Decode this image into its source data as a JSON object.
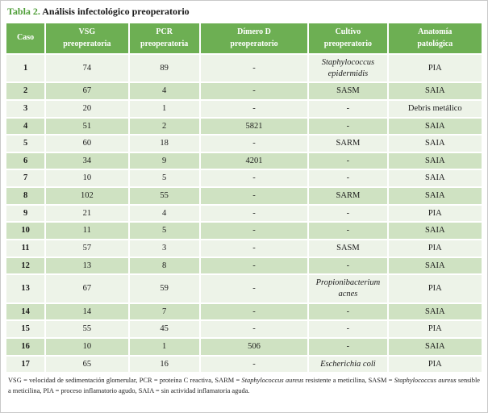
{
  "title": {
    "label": "Tabla 2.",
    "text": " Análisis infectológico preoperatorio"
  },
  "colors": {
    "header_green": "#6DAF53",
    "row_green": "#CFE2C2",
    "row_light": "#EDF3E8",
    "title_green": "#4F9E38",
    "text_dark": "#1C1C1C",
    "frame_gray": "#C9C9C9"
  },
  "table": {
    "columns": [
      {
        "id": "caso",
        "label": "Caso"
      },
      {
        "id": "vsg",
        "label": "VSG\npreoperatoria"
      },
      {
        "id": "pcr",
        "label": "PCR\npreoperatoria"
      },
      {
        "id": "dimero",
        "label": "Dímero D\npreoperatorio"
      },
      {
        "id": "cultivo",
        "label": "Cultivo\npreoperatorio"
      },
      {
        "id": "anatomia",
        "label": "Anatomía\npatológica"
      }
    ],
    "rows": [
      {
        "caso": "1",
        "vsg": "74",
        "pcr": "89",
        "dimero": "-",
        "cultivo": "Staphylococcus\nepidermidis",
        "cultivo_italic": true,
        "anatomia": "PIA"
      },
      {
        "caso": "2",
        "vsg": "67",
        "pcr": "4",
        "dimero": "-",
        "cultivo": "SASM",
        "cultivo_italic": false,
        "anatomia": "SAIA"
      },
      {
        "caso": "3",
        "vsg": "20",
        "pcr": "1",
        "dimero": "-",
        "cultivo": "-",
        "cultivo_italic": false,
        "anatomia": "Debris metálico"
      },
      {
        "caso": "4",
        "vsg": "51",
        "pcr": "2",
        "dimero": "5821",
        "cultivo": "-",
        "cultivo_italic": false,
        "anatomia": "SAIA"
      },
      {
        "caso": "5",
        "vsg": "60",
        "pcr": "18",
        "dimero": "-",
        "cultivo": "SARM",
        "cultivo_italic": false,
        "anatomia": "SAIA"
      },
      {
        "caso": "6",
        "vsg": "34",
        "pcr": "9",
        "dimero": "4201",
        "cultivo": "-",
        "cultivo_italic": false,
        "anatomia": "SAIA"
      },
      {
        "caso": "7",
        "vsg": "10",
        "pcr": "5",
        "dimero": "-",
        "cultivo": "-",
        "cultivo_italic": false,
        "anatomia": "SAIA"
      },
      {
        "caso": "8",
        "vsg": "102",
        "pcr": "55",
        "dimero": "-",
        "cultivo": "SARM",
        "cultivo_italic": false,
        "anatomia": "SAIA"
      },
      {
        "caso": "9",
        "vsg": "21",
        "pcr": "4",
        "dimero": "-",
        "cultivo": "-",
        "cultivo_italic": false,
        "anatomia": "PIA"
      },
      {
        "caso": "10",
        "vsg": "11",
        "pcr": "5",
        "dimero": "-",
        "cultivo": "-",
        "cultivo_italic": false,
        "anatomia": "SAIA"
      },
      {
        "caso": "11",
        "vsg": "57",
        "pcr": "3",
        "dimero": "-",
        "cultivo": "SASM",
        "cultivo_italic": false,
        "anatomia": "PIA"
      },
      {
        "caso": "12",
        "vsg": "13",
        "pcr": "8",
        "dimero": "-",
        "cultivo": "-",
        "cultivo_italic": false,
        "anatomia": "SAIA"
      },
      {
        "caso": "13",
        "vsg": "67",
        "pcr": "59",
        "dimero": "-",
        "cultivo": "Propionibacterium\nacnes",
        "cultivo_italic": true,
        "anatomia": "PIA"
      },
      {
        "caso": "14",
        "vsg": "14",
        "pcr": "7",
        "dimero": "-",
        "cultivo": "-",
        "cultivo_italic": false,
        "anatomia": "SAIA"
      },
      {
        "caso": "15",
        "vsg": "55",
        "pcr": "45",
        "dimero": "-",
        "cultivo": "-",
        "cultivo_italic": false,
        "anatomia": "PIA"
      },
      {
        "caso": "16",
        "vsg": "10",
        "pcr": "1",
        "dimero": "506",
        "cultivo": "-",
        "cultivo_italic": false,
        "anatomia": "SAIA"
      },
      {
        "caso": "17",
        "vsg": "65",
        "pcr": "16",
        "dimero": "-",
        "cultivo": "Escherichia coli",
        "cultivo_italic": true,
        "anatomia": "PIA"
      }
    ]
  },
  "footnote": {
    "segments": [
      {
        "text": "VSG = velocidad de sedimentación glomerular, PCR = proteína C reactiva, SARM = ",
        "italic": false
      },
      {
        "text": "Staphylococcus aureus",
        "italic": true
      },
      {
        "text": " resistente a meticilina, SASM = ",
        "italic": false
      },
      {
        "text": "Staphylococcus aureus",
        "italic": true
      },
      {
        "text": " sensible a meticilina, PIA = proceso inflamatorio agudo, SAIA = sin actividad inflamatoria aguda.",
        "italic": false
      }
    ]
  }
}
